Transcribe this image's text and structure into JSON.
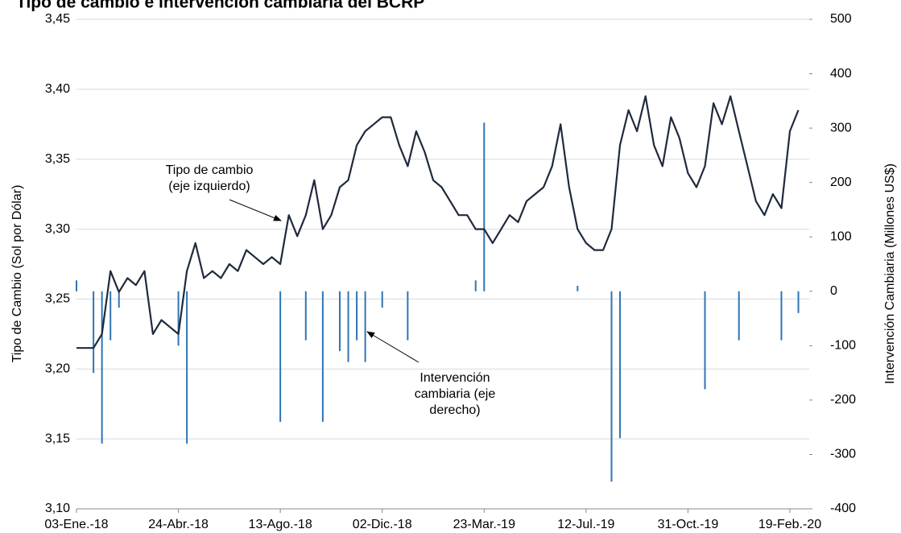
{
  "chart_data": {
    "type": "line+bar",
    "title": "Tipo de cambio e intervención cambiaria del BCRP",
    "ylabel": "Tipo de Cambio (Sol por Dólar)",
    "y2label": "Intervención Cambiaria (Millones US$)",
    "categories": [
      "03-Ene.-18",
      null,
      null,
      null,
      null,
      null,
      null,
      null,
      null,
      null,
      null,
      null,
      "24-Abr.-18",
      null,
      null,
      null,
      null,
      null,
      null,
      null,
      null,
      null,
      null,
      null,
      "13-Ago.-18",
      null,
      null,
      null,
      null,
      null,
      null,
      null,
      null,
      null,
      null,
      null,
      "02-Dic.-18",
      null,
      null,
      null,
      null,
      null,
      null,
      null,
      null,
      null,
      null,
      null,
      "23-Mar.-19",
      null,
      null,
      null,
      null,
      null,
      null,
      null,
      null,
      null,
      null,
      null,
      "12-Jul.-19",
      null,
      null,
      null,
      null,
      null,
      null,
      null,
      null,
      null,
      null,
      null,
      "31-Oct.-19",
      null,
      null,
      null,
      null,
      null,
      null,
      null,
      null,
      null,
      null,
      null,
      "19-Feb.-20",
      null
    ],
    "series": [
      {
        "name": "Tipo de cambio",
        "type": "line",
        "color": "#1f2a3c",
        "values": [
          3.215,
          3.215,
          3.215,
          3.225,
          3.27,
          3.255,
          3.265,
          3.26,
          3.27,
          3.225,
          3.235,
          3.23,
          3.225,
          3.27,
          3.29,
          3.265,
          3.27,
          3.265,
          3.275,
          3.27,
          3.285,
          3.28,
          3.275,
          3.28,
          3.275,
          3.31,
          3.295,
          3.31,
          3.335,
          3.3,
          3.31,
          3.33,
          3.335,
          3.36,
          3.37,
          3.375,
          3.38,
          3.38,
          3.36,
          3.345,
          3.37,
          3.355,
          3.335,
          3.33,
          3.32,
          3.31,
          3.31,
          3.3,
          3.3,
          3.29,
          3.3,
          3.31,
          3.305,
          3.32,
          3.325,
          3.33,
          3.345,
          3.375,
          3.33,
          3.3,
          3.29,
          3.285,
          3.285,
          3.3,
          3.36,
          3.385,
          3.37,
          3.395,
          3.36,
          3.345,
          3.38,
          3.365,
          3.34,
          3.33,
          3.345,
          3.39,
          3.375,
          3.395,
          3.37,
          3.345,
          3.32,
          3.31,
          3.325,
          3.315,
          3.37,
          3.385
        ]
      },
      {
        "name": "Intervención cambiaria",
        "type": "bar",
        "axis": "y2",
        "color": "#2e75b6",
        "values": [
          20,
          null,
          -150,
          -280,
          -90,
          -30,
          null,
          null,
          null,
          null,
          null,
          null,
          -100,
          -280,
          null,
          null,
          null,
          null,
          null,
          null,
          null,
          null,
          null,
          null,
          -240,
          null,
          null,
          -90,
          null,
          -240,
          null,
          -110,
          -130,
          -90,
          -130,
          null,
          -30,
          null,
          null,
          -90,
          null,
          null,
          null,
          null,
          null,
          null,
          null,
          20,
          310,
          null,
          null,
          null,
          null,
          null,
          null,
          null,
          null,
          null,
          null,
          10,
          null,
          null,
          null,
          -350,
          -270,
          null,
          null,
          null,
          null,
          null,
          null,
          null,
          null,
          null,
          -180,
          null,
          null,
          null,
          -90,
          null,
          null,
          null,
          null,
          -90,
          null,
          -40
        ]
      }
    ],
    "ylim": [
      3.1,
      3.45
    ],
    "yticks": [
      {
        "value": 3.1,
        "label": "3,10"
      },
      {
        "value": 3.15,
        "label": "3,15"
      },
      {
        "value": 3.2,
        "label": "3,20"
      },
      {
        "value": 3.25,
        "label": "3,25"
      },
      {
        "value": 3.3,
        "label": "3,30"
      },
      {
        "value": 3.35,
        "label": "3,35"
      },
      {
        "value": 3.4,
        "label": "3,40"
      },
      {
        "value": 3.45,
        "label": "3,45"
      }
    ],
    "y2lim": [
      -400,
      500
    ],
    "y2ticks": [
      -400,
      -300,
      -200,
      -100,
      0,
      100,
      200,
      300,
      400,
      500
    ],
    "grid": true,
    "annotations": [
      {
        "lines": [
          "Tipo de cambio",
          "(eje izquierdo)"
        ]
      },
      {
        "lines": [
          "Intervención",
          "cambiaria (eje",
          "derecho)"
        ]
      }
    ]
  }
}
